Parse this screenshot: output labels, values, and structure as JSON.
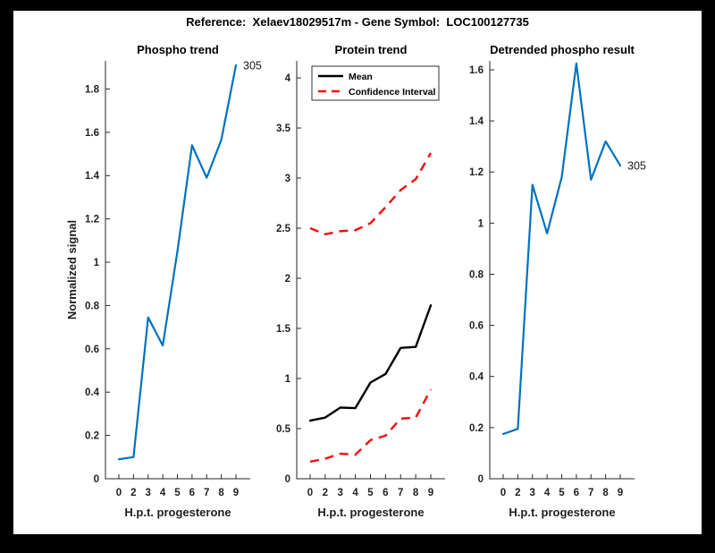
{
  "figure_title": "Reference:  Xelaev18029517m - Gene Symbol:  LOC100127735",
  "colors": {
    "background": "#000000",
    "figure_bg": "#ffffff",
    "blue": "#0072BD",
    "red": "#f20d0d",
    "black_line": "#000000",
    "axis": "#262626",
    "tick_label": "#1f1f1f"
  },
  "chart_data": [
    {
      "type": "line",
      "title": "Phospho trend",
      "xlabel": "H.p.t. progesterone",
      "ylabel": "Normalized signal",
      "categories": [
        "0",
        "2",
        "3",
        "4",
        "5",
        "6",
        "7",
        "8",
        "9"
      ],
      "ylim": [
        0,
        1.93
      ],
      "yticks": [
        0,
        0.2,
        0.4,
        0.6,
        0.8,
        1,
        1.2,
        1.4,
        1.6,
        1.8
      ],
      "grid": false,
      "series": [
        {
          "name": "phospho-signal",
          "color": "blue",
          "dash": false,
          "values": [
            0.09,
            0.1,
            0.745,
            0.615,
            1.05,
            1.54,
            1.39,
            1.565,
            1.91
          ]
        }
      ],
      "end_label": "305"
    },
    {
      "type": "line",
      "title": "Protein trend",
      "xlabel": "H.p.t. progesterone",
      "ylabel": "",
      "categories": [
        "0",
        "2",
        "3",
        "4",
        "5",
        "6",
        "7",
        "8",
        "9"
      ],
      "ylim": [
        0,
        4.17
      ],
      "yticks": [
        0,
        0.5,
        1,
        1.5,
        2,
        2.5,
        3,
        3.5,
        4
      ],
      "grid": false,
      "series": [
        {
          "name": "mean",
          "color": "black_line",
          "dash": false,
          "values": [
            0.58,
            0.61,
            0.71,
            0.705,
            0.96,
            1.045,
            1.305,
            1.315,
            1.73
          ]
        },
        {
          "name": "confidence-interval-lower",
          "color": "red",
          "dash": true,
          "values": [
            0.17,
            0.2,
            0.25,
            0.24,
            0.385,
            0.43,
            0.6,
            0.61,
            0.89
          ]
        },
        {
          "name": "confidence-interval-upper",
          "color": "red",
          "dash": true,
          "values": [
            2.5,
            2.44,
            2.47,
            2.48,
            2.55,
            2.71,
            2.88,
            2.99,
            3.25
          ]
        }
      ],
      "legend": {
        "position": "top-left",
        "items": [
          {
            "label": "Mean",
            "color": "black_line",
            "dash": false
          },
          {
            "label": "Confidence Interval",
            "color": "red",
            "dash": true
          }
        ]
      }
    },
    {
      "type": "line",
      "title": "Detrended phospho result",
      "xlabel": "H.p.t. progesterone",
      "ylabel": "",
      "categories": [
        "0",
        "2",
        "3",
        "4",
        "5",
        "6",
        "7",
        "8",
        "9"
      ],
      "ylim": [
        0,
        1.635
      ],
      "yticks": [
        0,
        0.2,
        0.4,
        0.6,
        0.8,
        1,
        1.2,
        1.4,
        1.6
      ],
      "grid": false,
      "series": [
        {
          "name": "detrended-phospho",
          "color": "blue",
          "dash": false,
          "values": [
            0.175,
            0.195,
            1.15,
            0.96,
            1.18,
            1.625,
            1.17,
            1.32,
            1.225
          ]
        }
      ],
      "end_label": "305"
    }
  ]
}
